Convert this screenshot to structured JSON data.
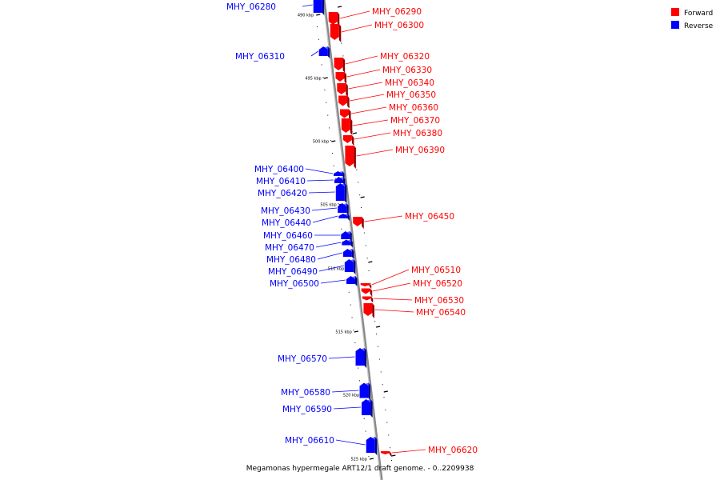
{
  "caption": "Megamonas hypermegale ART12/1 draft genome. - 0..2209938",
  "legend": [
    {
      "label": "Forward",
      "color": "#ff0000"
    },
    {
      "label": "Reverse",
      "color": "#0000ff"
    }
  ],
  "colors": {
    "forward": "#ff0000",
    "reverse": "#0000ff",
    "backbone": "#888888"
  },
  "ticks": [
    "490 kbp",
    "495 kbp",
    "500 kbp",
    "505 kbp",
    "510 kbp",
    "515 kbp",
    "520 kbp",
    "525 kbp"
  ],
  "genes": [
    {
      "id": "MHY_06280",
      "strand": "reverse"
    },
    {
      "id": "MHY_06290",
      "strand": "forward"
    },
    {
      "id": "MHY_06300",
      "strand": "forward"
    },
    {
      "id": "MHY_06310",
      "strand": "reverse"
    },
    {
      "id": "MHY_06320",
      "strand": "forward"
    },
    {
      "id": "MHY_06330",
      "strand": "forward"
    },
    {
      "id": "MHY_06340",
      "strand": "forward"
    },
    {
      "id": "MHY_06350",
      "strand": "forward"
    },
    {
      "id": "MHY_06360",
      "strand": "forward"
    },
    {
      "id": "MHY_06370",
      "strand": "forward"
    },
    {
      "id": "MHY_06380",
      "strand": "forward"
    },
    {
      "id": "MHY_06390",
      "strand": "forward"
    },
    {
      "id": "MHY_06400",
      "strand": "reverse"
    },
    {
      "id": "MHY_06410",
      "strand": "reverse"
    },
    {
      "id": "MHY_06420",
      "strand": "reverse"
    },
    {
      "id": "MHY_06430",
      "strand": "reverse"
    },
    {
      "id": "MHY_06440",
      "strand": "reverse"
    },
    {
      "id": "MHY_06450",
      "strand": "forward"
    },
    {
      "id": "MHY_06460",
      "strand": "reverse"
    },
    {
      "id": "MHY_06470",
      "strand": "reverse"
    },
    {
      "id": "MHY_06480",
      "strand": "reverse"
    },
    {
      "id": "MHY_06490",
      "strand": "reverse"
    },
    {
      "id": "MHY_06500",
      "strand": "reverse"
    },
    {
      "id": "MHY_06510",
      "strand": "forward"
    },
    {
      "id": "MHY_06520",
      "strand": "forward"
    },
    {
      "id": "MHY_06530",
      "strand": "forward"
    },
    {
      "id": "MHY_06540",
      "strand": "forward"
    },
    {
      "id": "MHY_06570",
      "strand": "reverse"
    },
    {
      "id": "MHY_06580",
      "strand": "reverse"
    },
    {
      "id": "MHY_06590",
      "strand": "reverse"
    },
    {
      "id": "MHY_06610",
      "strand": "reverse"
    },
    {
      "id": "MHY_06620",
      "strand": "forward"
    }
  ]
}
